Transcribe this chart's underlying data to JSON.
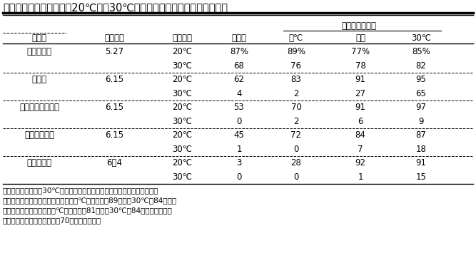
{
  "title": "表２．種子の保存温度が20℃及び30℃での３日間の発芽率に及ぼす影響",
  "col_headers_line1": [
    "品　種",
    "採種月日",
    "検定温度",
    "脱殻日",
    "保　存　温　度"
  ],
  "col_headers_line2": [
    "",
    "",
    "",
    "",
    "７℃",
    "室温",
    "30℃"
  ],
  "hogo_label": "保　存　温　度",
  "hinshuu": "品　種",
  "saishu": "採種月日",
  "kentei": "検定温度",
  "dakoku": "脱殻日",
  "temp_7": "７℃",
  "shitsu": "室温",
  "temp_30": "30℃",
  "rows": [
    [
      "はえいぶき",
      "5.27",
      "20℃",
      "87%",
      "89%",
      "77%",
      "85%"
    ],
    [
      "",
      "",
      "30℃",
      "68",
      "76",
      "78",
      "82"
    ],
    [
      "ハヤテ",
      "6.15",
      "20℃",
      "62",
      "83",
      "91",
      "95"
    ],
    [
      "",
      "",
      "30℃",
      "4",
      "2",
      "27",
      "65"
    ],
    [
      "スーパーハヤテ準",
      "6.15",
      "20℃",
      "53",
      "70",
      "91",
      "97"
    ],
    [
      "",
      "",
      "30℃",
      "0",
      "2",
      "6",
      "9"
    ],
    [
      "エンダックス",
      "6.15",
      "20℃",
      "45",
      "72",
      "84",
      "87"
    ],
    [
      "",
      "",
      "30℃",
      "1",
      "0",
      "7",
      "18"
    ],
    [
      "日向改良黒",
      "6．4",
      "20℃",
      "3",
      "28",
      "92",
      "91"
    ],
    [
      "",
      "",
      "30℃",
      "0",
      "0",
      "1",
      "15"
    ]
  ],
  "footnote_lines": [
    "注）採種した種子を30℃の種子乾燥器に１週間置いて脱殻した後、各保存",
    "温度に置いた。「はえいぶき」は、７℃及び室温で89日間、30℃で84日間保",
    "存した。日向改良黒は、７℃及び室温で81日間、30℃で84日間保存した。",
    "他の３品種は、各保存温度で70日間保存した。"
  ],
  "bg_color": "#ffffff",
  "text_color": "#000000",
  "font_size": 8.5,
  "title_font_size": 10.5
}
